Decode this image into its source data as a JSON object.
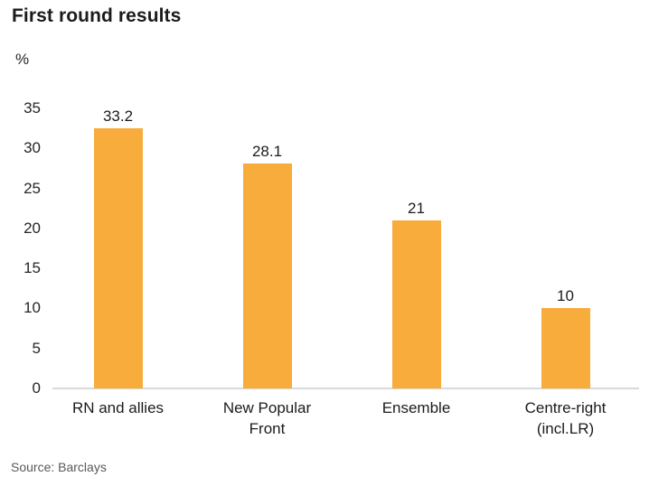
{
  "title": "First round results",
  "source": "Source: Barclays",
  "chart_data": {
    "type": "bar",
    "title": "First round results",
    "categories": [
      "RN and allies",
      "New Popular Front",
      "Ensemble",
      "Centre-right (incl.LR)"
    ],
    "values": [
      33.2,
      28.1,
      21,
      10
    ],
    "value_labels": [
      "33.2",
      "28.1",
      "21",
      "10"
    ],
    "xlabel": "",
    "ylabel": "%",
    "ylim": [
      0,
      35
    ],
    "yticks": [
      0,
      5,
      10,
      15,
      20,
      25,
      30,
      35
    ],
    "bar_color": "#f7ac3b",
    "axis_line_color": "#d9d9d9",
    "grid": false,
    "legend_position": "none",
    "source": "Source: Barclays"
  }
}
